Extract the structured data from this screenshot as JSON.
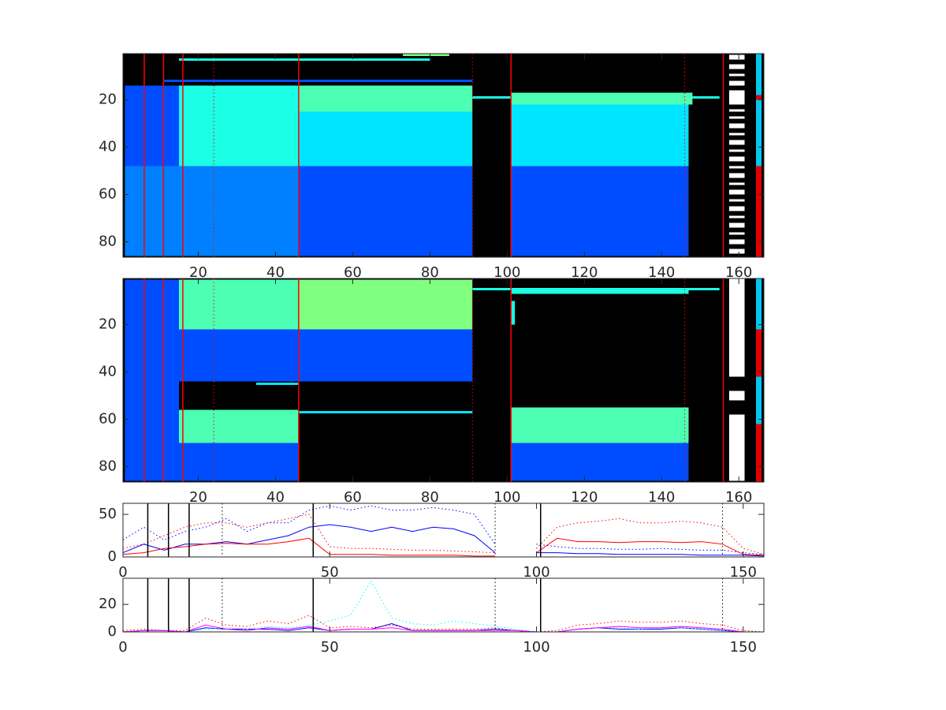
{
  "chart_data": [
    {
      "type": "heatmap",
      "colormap": "jet",
      "clim": [
        0,
        10
      ],
      "ydir": "reverse",
      "xlim": [
        0.5,
        166.5
      ],
      "ylim": [
        0.5,
        86.5
      ],
      "xticks": [
        20,
        40,
        60,
        80,
        100,
        120,
        140,
        160
      ],
      "yticks": [
        20,
        40,
        60,
        80
      ],
      "cells": [
        [
          15,
          80,
          2.5,
          3.5,
          4
        ],
        [
          73,
          85,
          0.5,
          1.5,
          5
        ],
        [
          11,
          91,
          11.5,
          12.5,
          2
        ],
        [
          1,
          155,
          18.5,
          19.5,
          4
        ],
        [
          1,
          15,
          14,
          50,
          2
        ],
        [
          15,
          46,
          14,
          48,
          4
        ],
        [
          1,
          46,
          48,
          86,
          2.5
        ],
        [
          46,
          91,
          14,
          25,
          4.5
        ],
        [
          46,
          91,
          25,
          48,
          3.5
        ],
        [
          46,
          91,
          48,
          86,
          2
        ],
        [
          101,
          148,
          17,
          22,
          4.5
        ],
        [
          101,
          147,
          22,
          48,
          3.5
        ],
        [
          101,
          147,
          48,
          86,
          2
        ]
      ],
      "mask": [
        [
          1,
          3
        ],
        [
          5,
          7
        ],
        [
          9,
          10
        ],
        [
          12,
          14
        ],
        [
          16,
          22
        ],
        [
          24,
          25
        ],
        [
          27,
          28
        ],
        [
          30,
          32
        ],
        [
          34,
          35
        ],
        [
          37,
          39
        ],
        [
          41,
          42
        ],
        [
          44,
          46
        ],
        [
          48,
          49
        ],
        [
          51,
          53
        ],
        [
          55,
          56
        ],
        [
          58,
          60
        ],
        [
          62,
          63
        ],
        [
          65,
          67
        ],
        [
          69,
          70
        ],
        [
          72,
          74
        ],
        [
          76,
          77
        ],
        [
          79,
          81
        ],
        [
          83,
          85
        ]
      ],
      "mask_x": [
        157.5,
        161.5
      ],
      "side_bands": [
        {
          "y": [
            0.5,
            18
          ],
          "color": "#00c8f0"
        },
        {
          "y": [
            18,
            20
          ],
          "color": "#e00000"
        },
        {
          "y": [
            20,
            48
          ],
          "color": "#00c8f0"
        },
        {
          "y": [
            48,
            86.5
          ],
          "color": "#e00000"
        }
      ],
      "vlines": [
        {
          "x": 6,
          "style": "solid"
        },
        {
          "x": 11,
          "style": "solid"
        },
        {
          "x": 16,
          "style": "solid"
        },
        {
          "x": 24,
          "style": "dotted"
        },
        {
          "x": 46,
          "style": "solid"
        },
        {
          "x": 91,
          "style": "dotted"
        },
        {
          "x": 101,
          "style": "solid"
        },
        {
          "x": 146,
          "style": "dotted"
        },
        {
          "x": 156,
          "style": "solid"
        }
      ],
      "vline_color": "#ff0000"
    },
    {
      "type": "heatmap",
      "colormap": "jet",
      "clim": [
        0,
        10
      ],
      "ydir": "reverse",
      "xlim": [
        0.5,
        166.5
      ],
      "ylim": [
        0.5,
        86.5
      ],
      "xticks": [
        20,
        40,
        60,
        80,
        100,
        120,
        140,
        160
      ],
      "yticks": [
        20,
        40,
        60,
        80
      ],
      "cells": [
        [
          1,
          15,
          1,
          86,
          2
        ],
        [
          15,
          46,
          1,
          22,
          4.5
        ],
        [
          46,
          91,
          1,
          22,
          5
        ],
        [
          91,
          155,
          4.5,
          5.5,
          4
        ],
        [
          101,
          147,
          5.5,
          7,
          4
        ],
        [
          15,
          91,
          22,
          44,
          2
        ],
        [
          35,
          46,
          44.5,
          45.5,
          3.5
        ],
        [
          15,
          46,
          56,
          70,
          4.5
        ],
        [
          46,
          91,
          56.5,
          57.5,
          3.5
        ],
        [
          101,
          147,
          55,
          70,
          4.5
        ],
        [
          101,
          147,
          70,
          86,
          2
        ],
        [
          15,
          46,
          70,
          86,
          2
        ],
        [
          101,
          102,
          10,
          20,
          4
        ]
      ],
      "mask": [
        [
          0.5,
          42
        ],
        [
          48,
          52
        ],
        [
          58,
          86
        ]
      ],
      "mask_x": [
        157.5,
        161.5
      ],
      "side_bands": [
        {
          "y": [
            0.5,
            22
          ],
          "color": "#00c8f0"
        },
        {
          "y": [
            22,
            42
          ],
          "color": "#e00000"
        },
        {
          "y": [
            42,
            62
          ],
          "color": "#00c8f0"
        },
        {
          "y": [
            62,
            86.5
          ],
          "color": "#e00000"
        }
      ],
      "vlines": [
        {
          "x": 6,
          "style": "solid"
        },
        {
          "x": 11,
          "style": "solid"
        },
        {
          "x": 16,
          "style": "solid"
        },
        {
          "x": 24,
          "style": "dotted"
        },
        {
          "x": 46,
          "style": "solid"
        },
        {
          "x": 91,
          "style": "dotted"
        },
        {
          "x": 101,
          "style": "solid"
        },
        {
          "x": 146,
          "style": "dotted"
        },
        {
          "x": 156,
          "style": "solid"
        }
      ],
      "vline_color": "#ff0000"
    },
    {
      "type": "line",
      "xlim": [
        0,
        155
      ],
      "ylim": [
        0,
        63
      ],
      "xticks": [
        0,
        50,
        100,
        150
      ],
      "yticks": [
        0,
        50
      ],
      "x": [
        0,
        5,
        10,
        15,
        20,
        25,
        30,
        35,
        40,
        45,
        50,
        55,
        60,
        65,
        70,
        75,
        80,
        85,
        90,
        95,
        100,
        105,
        110,
        115,
        120,
        125,
        130,
        135,
        140,
        145,
        150,
        155
      ],
      "series": [
        {
          "color": "#0000ff",
          "style": "solid",
          "values": [
            5,
            15,
            8,
            15,
            15,
            18,
            15,
            20,
            25,
            35,
            38,
            35,
            30,
            35,
            30,
            35,
            33,
            25,
            5,
            null,
            5,
            5,
            4,
            4,
            3,
            3,
            3,
            3,
            2,
            2,
            2,
            1
          ]
        },
        {
          "color": "#0000ff",
          "style": "dotted",
          "values": [
            20,
            35,
            20,
            30,
            35,
            45,
            30,
            40,
            40,
            55,
            60,
            55,
            60,
            55,
            55,
            58,
            55,
            50,
            15,
            null,
            15,
            12,
            10,
            10,
            9,
            9,
            10,
            9,
            8,
            8,
            5,
            3
          ]
        },
        {
          "color": "#ff0000",
          "style": "solid",
          "values": [
            3,
            5,
            10,
            12,
            15,
            16,
            15,
            15,
            18,
            22,
            3,
            3,
            3,
            2,
            2,
            2,
            2,
            1,
            1,
            null,
            5,
            22,
            18,
            18,
            17,
            18,
            18,
            17,
            18,
            15,
            3,
            2
          ]
        },
        {
          "color": "#ff0000",
          "style": "dotted",
          "values": [
            10,
            15,
            25,
            35,
            40,
            40,
            35,
            40,
            45,
            50,
            12,
            10,
            10,
            9,
            8,
            8,
            7,
            6,
            5,
            null,
            10,
            35,
            40,
            42,
            45,
            40,
            40,
            42,
            40,
            35,
            10,
            3
          ]
        }
      ],
      "vlines": [
        {
          "x": 6,
          "style": "solid"
        },
        {
          "x": 11,
          "style": "solid"
        },
        {
          "x": 16,
          "style": "solid"
        },
        {
          "x": 24,
          "style": "dotted"
        },
        {
          "x": 46,
          "style": "solid"
        },
        {
          "x": 90,
          "style": "dotted"
        },
        {
          "x": 101,
          "style": "solid"
        },
        {
          "x": 145,
          "style": "dotted"
        }
      ],
      "vline_color": "#000000"
    },
    {
      "type": "line",
      "xlim": [
        0,
        155
      ],
      "ylim": [
        0,
        39
      ],
      "xticks": [
        0,
        50,
        100,
        150
      ],
      "yticks": [
        0,
        20
      ],
      "x": [
        0,
        5,
        10,
        15,
        20,
        25,
        30,
        35,
        40,
        45,
        50,
        55,
        60,
        65,
        70,
        75,
        80,
        85,
        90,
        95,
        100,
        105,
        110,
        115,
        120,
        125,
        130,
        135,
        140,
        145,
        150,
        155
      ],
      "series": [
        {
          "color": "#0000ff",
          "style": "solid",
          "values": [
            0,
            1,
            1,
            0,
            3,
            2,
            2,
            2,
            1,
            3,
            1,
            2,
            2,
            6,
            1,
            1,
            1,
            1,
            2,
            1,
            0,
            0,
            2,
            3,
            2,
            2,
            2,
            3,
            2,
            1,
            0,
            0
          ]
        },
        {
          "color": "#ff0000",
          "style": "dotted",
          "values": [
            1,
            2,
            1,
            1,
            10,
            5,
            4,
            8,
            6,
            12,
            3,
            4,
            3,
            5,
            2,
            2,
            2,
            2,
            3,
            1,
            0,
            1,
            5,
            6,
            8,
            7,
            7,
            8,
            6,
            5,
            1,
            0
          ]
        },
        {
          "color": "#00ffff",
          "style": "dotted",
          "values": [
            0,
            1,
            1,
            0,
            2,
            3,
            2,
            4,
            3,
            5,
            8,
            12,
            37,
            10,
            6,
            5,
            8,
            6,
            4,
            2,
            0,
            0,
            2,
            3,
            3,
            2,
            3,
            3,
            2,
            1,
            0,
            0
          ]
        },
        {
          "color": "#ff00ff",
          "style": "solid",
          "values": [
            0,
            1,
            1,
            0,
            5,
            2,
            1,
            3,
            2,
            4,
            1,
            2,
            2,
            3,
            1,
            1,
            1,
            1,
            1,
            1,
            0,
            0,
            2,
            3,
            4,
            3,
            3,
            4,
            3,
            2,
            0,
            0
          ]
        }
      ],
      "vlines": [
        {
          "x": 6,
          "style": "solid"
        },
        {
          "x": 11,
          "style": "solid"
        },
        {
          "x": 16,
          "style": "solid"
        },
        {
          "x": 24,
          "style": "dotted"
        },
        {
          "x": 46,
          "style": "solid"
        },
        {
          "x": 90,
          "style": "dotted"
        },
        {
          "x": 101,
          "style": "solid"
        },
        {
          "x": 145,
          "style": "dotted"
        }
      ],
      "vline_color": "#000000"
    }
  ]
}
